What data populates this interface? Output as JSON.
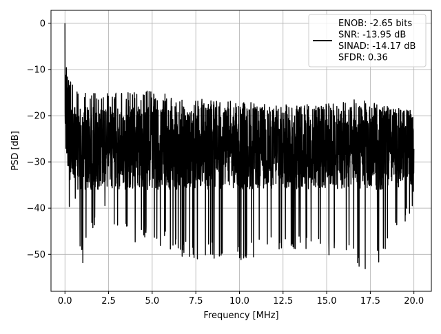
{
  "chart_data": {
    "type": "line",
    "title": "",
    "xlabel": "Frequency [MHz]",
    "ylabel": "PSD [dB]",
    "xlim": [
      -0.8,
      21.0
    ],
    "ylim": [
      -58.0,
      2.8
    ],
    "grid": true,
    "x_ticks": [
      0.0,
      2.5,
      5.0,
      7.5,
      10.0,
      12.5,
      15.0,
      17.5,
      20.0
    ],
    "x_tick_labels": [
      "0.0",
      "2.5",
      "5.0",
      "7.5",
      "10.0",
      "12.5",
      "15.0",
      "17.5",
      "20.0"
    ],
    "y_ticks": [
      0,
      -10,
      -20,
      -30,
      -40,
      -50
    ],
    "y_tick_labels": [
      "0",
      "−10",
      "−20",
      "−30",
      "−40",
      "−50"
    ],
    "legend": {
      "placement": "upper right",
      "lines": [
        "ENOB: -2.65 bits",
        "SNR: -13.95 dB",
        "SINAD: -14.17 dB",
        "SFDR: 0.36"
      ]
    },
    "series": [
      {
        "color": "#000000",
        "x_start": 0.0,
        "x_end": 20.0,
        "envelope": [
          {
            "x": 0.0,
            "ymax": 0.0,
            "ymin": -26.0
          },
          {
            "x": 0.05,
            "ymax": -9.0,
            "ymin": -22.0
          },
          {
            "x": 0.1,
            "ymax": -9.5,
            "ymin": -25.0
          },
          {
            "x": 0.3,
            "ymax": -12.0,
            "ymin": -45.0
          },
          {
            "x": 0.5,
            "ymax": -13.0,
            "ymin": -38.0
          },
          {
            "x": 1.0,
            "ymax": -14.0,
            "ymin": -52.5
          },
          {
            "x": 2.0,
            "ymax": -15.0,
            "ymin": -40.0
          },
          {
            "x": 3.0,
            "ymax": -14.5,
            "ymin": -45.0
          },
          {
            "x": 4.0,
            "ymax": -15.0,
            "ymin": -48.0
          },
          {
            "x": 5.0,
            "ymax": -14.5,
            "ymin": -47.0
          },
          {
            "x": 6.5,
            "ymax": -16.0,
            "ymin": -51.0
          },
          {
            "x": 8.0,
            "ymax": -16.5,
            "ymin": -51.0
          },
          {
            "x": 10.0,
            "ymax": -17.0,
            "ymin": -52.0
          },
          {
            "x": 12.5,
            "ymax": -17.5,
            "ymin": -49.0
          },
          {
            "x": 15.0,
            "ymax": -17.0,
            "ymin": -50.0
          },
          {
            "x": 16.5,
            "ymax": -16.5,
            "ymin": -52.0
          },
          {
            "x": 17.0,
            "ymax": -16.5,
            "ymin": -55.0
          },
          {
            "x": 18.5,
            "ymax": -18.0,
            "ymin": -50.0
          },
          {
            "x": 20.0,
            "ymax": -19.0,
            "ymin": -40.0
          }
        ],
        "noise_floor": -27.0
      }
    ]
  }
}
